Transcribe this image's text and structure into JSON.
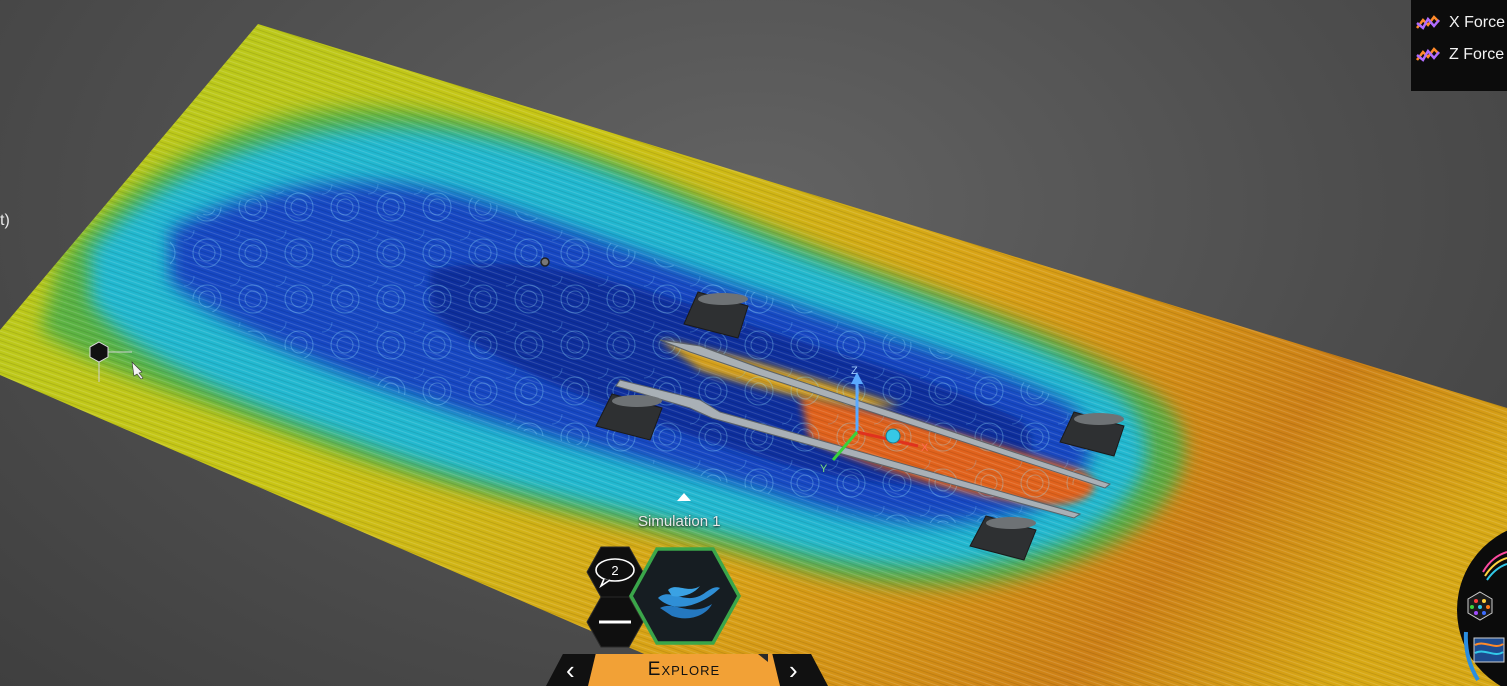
{
  "app": {
    "edge_label": "t)",
    "simulation_label": "Simulation 1",
    "comments_count": "2",
    "explore_label": "Explore",
    "accent_color": "#f2a136"
  },
  "legend": {
    "items": [
      {
        "label": "X Force",
        "icon": "chart-trend-icon"
      },
      {
        "label": "Z Force",
        "icon": "chart-trend-icon"
      }
    ]
  },
  "viewport": {
    "axes": {
      "x": "X",
      "y": "Y",
      "z": "Z"
    }
  },
  "icons": {
    "prev": "chevron-left-icon",
    "next": "chevron-right-icon",
    "comments": "speech-bubble-icon",
    "minimize": "minus-icon",
    "flow": "water-waves-icon"
  }
}
